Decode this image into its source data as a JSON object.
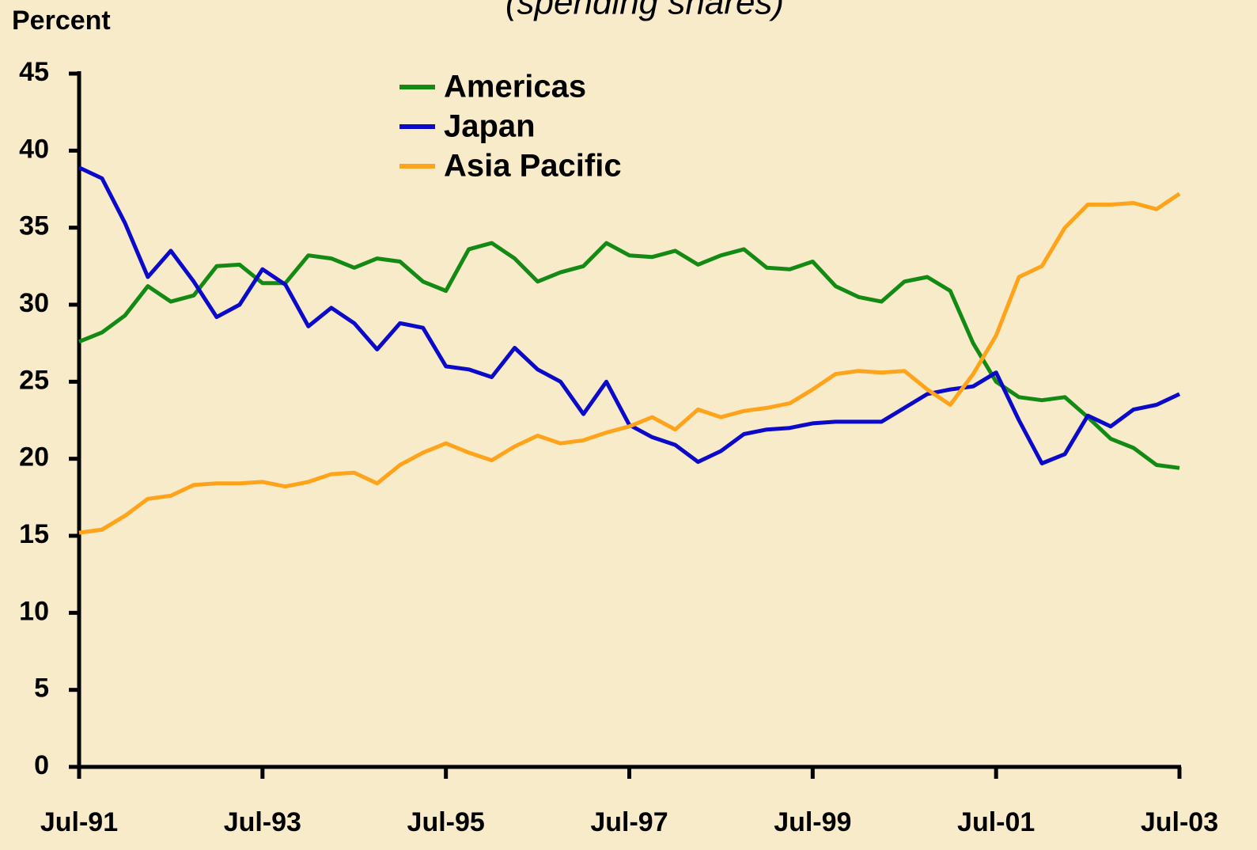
{
  "chart_data": {
    "type": "line",
    "subtitle": "(spending shares)",
    "y_label": "Percent",
    "x": [
      "1991-07",
      "1991-10",
      "1992-01",
      "1992-04",
      "1992-07",
      "1992-10",
      "1993-01",
      "1993-04",
      "1993-07",
      "1993-10",
      "1994-01",
      "1994-04",
      "1994-07",
      "1994-10",
      "1995-01",
      "1995-04",
      "1995-07",
      "1995-10",
      "1996-01",
      "1996-04",
      "1996-07",
      "1996-10",
      "1997-01",
      "1997-04",
      "1997-07",
      "1997-10",
      "1998-01",
      "1998-04",
      "1998-07",
      "1998-10",
      "1999-01",
      "1999-04",
      "1999-07",
      "1999-10",
      "2000-01",
      "2000-04",
      "2000-07",
      "2000-10",
      "2001-01",
      "2001-04",
      "2001-07",
      "2001-10",
      "2002-01",
      "2002-04",
      "2002-07",
      "2002-10",
      "2003-01",
      "2003-04",
      "2003-07"
    ],
    "series": [
      {
        "name": "Americas",
        "color": "#138a13",
        "values": [
          27.6,
          28.2,
          29.3,
          31.2,
          30.2,
          30.6,
          32.5,
          32.6,
          31.4,
          31.4,
          33.2,
          33.0,
          32.4,
          33.0,
          32.8,
          31.5,
          30.9,
          33.6,
          34.0,
          33.0,
          31.5,
          32.1,
          32.5,
          34.0,
          33.2,
          33.1,
          33.5,
          32.6,
          33.2,
          33.6,
          32.4,
          32.3,
          32.8,
          31.2,
          30.5,
          30.2,
          31.5,
          31.8,
          30.9,
          27.5,
          25.0,
          24.0,
          23.8,
          24.0,
          22.7,
          21.3,
          20.7,
          19.6,
          19.4
        ]
      },
      {
        "name": "Japan",
        "color": "#0a0ac8",
        "values": [
          38.9,
          38.2,
          35.3,
          31.8,
          33.5,
          31.5,
          29.2,
          30.0,
          32.3,
          31.3,
          28.6,
          29.8,
          28.8,
          27.1,
          28.8,
          28.5,
          26.0,
          25.8,
          25.3,
          27.2,
          25.8,
          25.0,
          22.9,
          25.0,
          22.2,
          21.4,
          20.9,
          19.8,
          20.5,
          21.6,
          21.9,
          22.0,
          22.3,
          22.4,
          22.4,
          22.4,
          23.3,
          24.2,
          24.5,
          24.7,
          25.6,
          22.5,
          19.7,
          20.3,
          22.8,
          22.1,
          23.2,
          23.5,
          24.2
        ]
      },
      {
        "name": "Asia Pacific",
        "color": "#ffa31a",
        "values": [
          15.2,
          15.4,
          16.3,
          17.4,
          17.6,
          18.3,
          18.4,
          18.4,
          18.5,
          18.2,
          18.5,
          19.0,
          19.1,
          18.4,
          19.6,
          20.4,
          21.0,
          20.4,
          19.9,
          20.8,
          21.5,
          21.0,
          21.2,
          21.7,
          22.1,
          22.7,
          21.9,
          23.2,
          22.7,
          23.1,
          23.3,
          23.6,
          24.5,
          25.5,
          25.7,
          25.6,
          25.7,
          24.5,
          23.5,
          25.5,
          28.0,
          31.8,
          32.5,
          35.0,
          36.5,
          36.5,
          36.6,
          36.2,
          37.2
        ]
      }
    ],
    "xlim": [
      "1991-07",
      "2003-07"
    ],
    "xticks": [
      {
        "value": "1991-07",
        "label": "Jul-91"
      },
      {
        "value": "1993-07",
        "label": "Jul-93"
      },
      {
        "value": "1995-07",
        "label": "Jul-95"
      },
      {
        "value": "1997-07",
        "label": "Jul-97"
      },
      {
        "value": "1999-07",
        "label": "Jul-99"
      },
      {
        "value": "2001-07",
        "label": "Jul-01"
      },
      {
        "value": "2003-07",
        "label": "Jul-03"
      }
    ],
    "ylim": [
      0,
      45
    ],
    "yticks": [
      0,
      5,
      10,
      15,
      20,
      25,
      30,
      35,
      40,
      45
    ],
    "grid": false,
    "legend": "upper center"
  }
}
